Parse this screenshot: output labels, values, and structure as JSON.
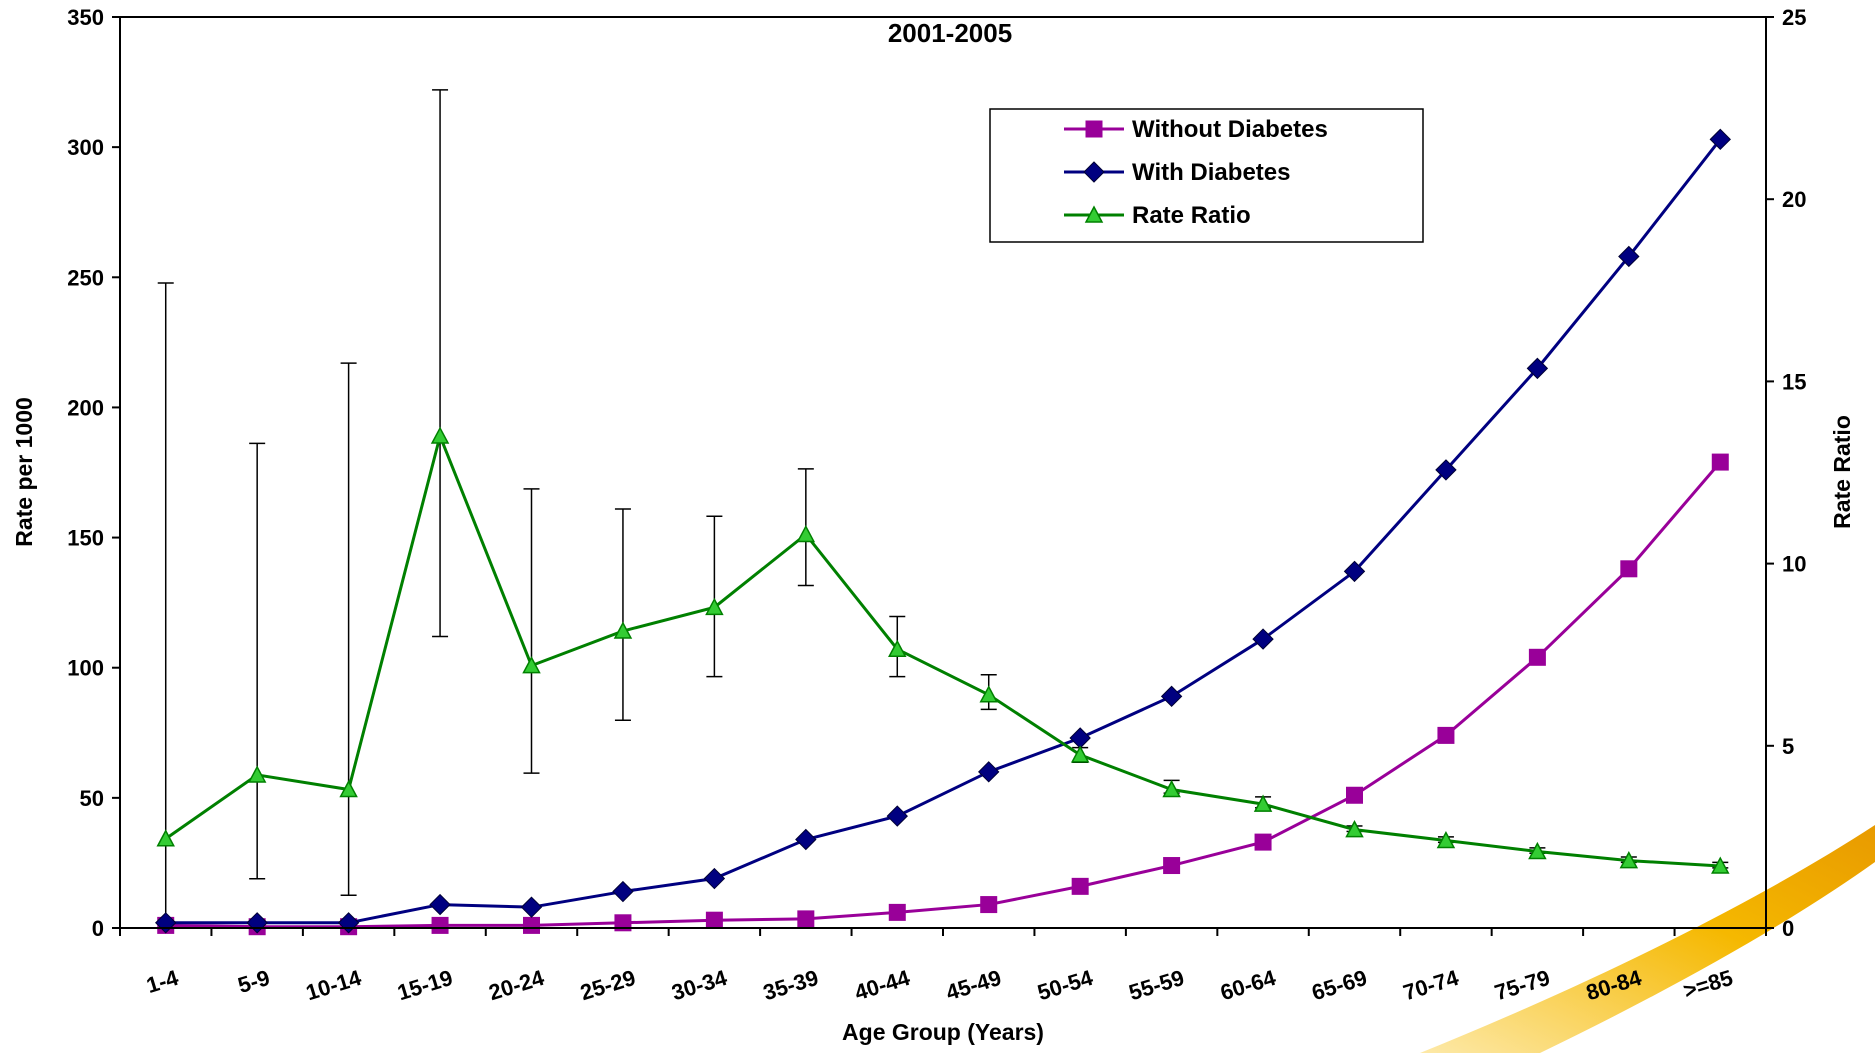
{
  "chart_data": {
    "type": "line",
    "title": "2001-2005",
    "xlabel": "Age Group (Years)",
    "ylabel": "Rate per 1000",
    "y2label": "Rate Ratio",
    "ylim": [
      0,
      350
    ],
    "y2lim": [
      0,
      25
    ],
    "yticks": [
      "0",
      "50",
      "100",
      "150",
      "200",
      "250",
      "300",
      "350"
    ],
    "y2ticks": [
      "0",
      "5",
      "10",
      "15",
      "20",
      "25"
    ],
    "categories": [
      "1-4",
      "5-9",
      "10-14",
      "15-19",
      "20-24",
      "25-29",
      "30-34",
      "35-39",
      "40-44",
      "45-49",
      "50-54",
      "55-59",
      "60-64",
      "65-69",
      "70-74",
      "75-79",
      "80-84",
      ">=85"
    ],
    "legend_position": "top-right",
    "grid": false,
    "series": [
      {
        "name": "Without Diabetes",
        "axis": "left",
        "marker": "square",
        "color": "#990099",
        "values": [
          1,
          0.5,
          0.5,
          1,
          1,
          2,
          3,
          3.5,
          6,
          9,
          16,
          24,
          33,
          51,
          74,
          104,
          138,
          179
        ]
      },
      {
        "name": "With Diabetes",
        "axis": "left",
        "marker": "diamond",
        "color": "#000080",
        "values": [
          2,
          2,
          2,
          9,
          8,
          14,
          19,
          34,
          43,
          60,
          73,
          89,
          111,
          137,
          176,
          215,
          258,
          303
        ]
      },
      {
        "name": "Rate Ratio",
        "axis": "right",
        "marker": "triangle",
        "color": "#008000",
        "values": [
          2.45,
          4.2,
          3.8,
          13.5,
          7.2,
          8.15,
          8.8,
          10.8,
          7.65,
          6.4,
          4.75,
          3.8,
          3.4,
          2.7,
          2.4,
          2.1,
          1.85,
          1.7
        ],
        "error_low": [
          0.2,
          1.35,
          0.9,
          8.0,
          4.25,
          5.7,
          6.9,
          9.4,
          6.9,
          6.0,
          4.55,
          3.7,
          3.3,
          2.65,
          2.35,
          2.05,
          1.8,
          1.65
        ],
        "error_high": [
          17.7,
          13.3,
          15.5,
          23.0,
          12.05,
          11.5,
          11.3,
          12.6,
          8.55,
          6.95,
          4.95,
          4.05,
          3.6,
          2.8,
          2.5,
          2.2,
          1.95,
          1.8
        ]
      }
    ]
  },
  "decor": {
    "swoosh_color": "#F5B800"
  }
}
